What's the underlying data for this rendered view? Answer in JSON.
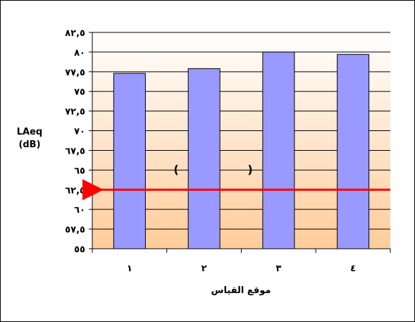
{
  "chart_data": {
    "type": "bar",
    "categories": [
      "١",
      "٢",
      "٣",
      "٤"
    ],
    "values": [
      77.3,
      77.9,
      80.0,
      79.7
    ],
    "ylim": [
      55,
      82.5
    ],
    "ytick_values": [
      55,
      57.5,
      60,
      62.5,
      65,
      67.5,
      70,
      72.5,
      75,
      77.5,
      80,
      82.5
    ],
    "ytick_labels": [
      "٥٥",
      "٥٧,٥",
      "٦٠",
      "٦٢,٥",
      "٦٥",
      "٦٧,٥",
      "٧٠",
      "٧٢,٥",
      "٧٥",
      "٧٧,٥",
      "٨٠",
      "٨٢,٥"
    ],
    "ylabel_line1": "LAeq",
    "ylabel_line2": "(dB)",
    "xlabel": "موقع القياس",
    "reference_line": {
      "value": 62.5,
      "color": "#ff0000",
      "direction": "arrow-left"
    },
    "annotation_left": "(",
    "annotation_right": ")",
    "bar_color": "#9999ff",
    "background_gradient": [
      "#ffffff",
      "#ffcc99"
    ],
    "grid": true
  }
}
